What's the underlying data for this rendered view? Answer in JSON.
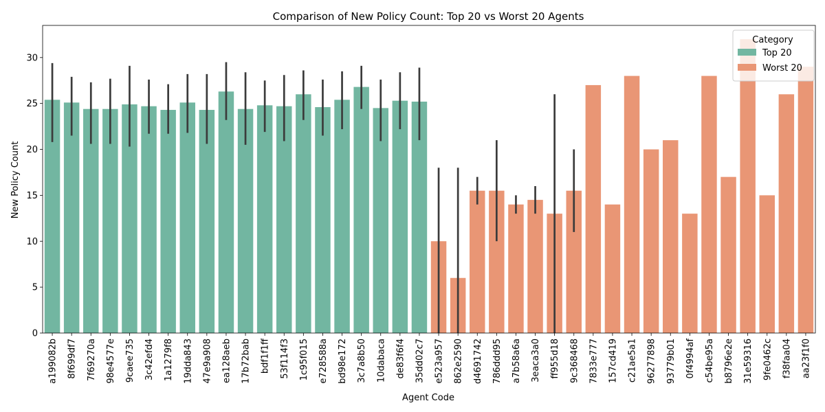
{
  "chart_data": {
    "type": "bar",
    "title": "Comparison of New Policy Count: Top 20 vs Worst 20 Agents",
    "xlabel": "Agent Code",
    "ylabel": "New Policy Count",
    "ylim": [
      0,
      33.5
    ],
    "yticks": [
      0,
      5,
      10,
      15,
      20,
      25,
      30
    ],
    "grid": false,
    "legend": {
      "title": "Category",
      "placement": "top-right",
      "entries": [
        {
          "name": "Top 20",
          "color": "#72b6a1"
        },
        {
          "name": "Worst 20",
          "color": "#e99675"
        }
      ]
    },
    "error_bar_color": "#3b3b3b",
    "categories": [
      "a199082b",
      "8f699df7",
      "7f69270a",
      "98e4577e",
      "9caee735",
      "3c42efd4",
      "1a1279f8",
      "19dda843",
      "47e9a908",
      "ea128aeb",
      "17b72bab",
      "bdf1f1ff",
      "53f114f3",
      "1c95f015",
      "e728588a",
      "bd98e172",
      "3c7a8b50",
      "10dabaca",
      "de83f6f4",
      "35dd02c7",
      "e523a957",
      "862e2590",
      "d4691742",
      "786ddd95",
      "a7b58a6a",
      "3eaca3a0",
      "ff955d18",
      "9c368468",
      "7833e777",
      "157cd419",
      "c21ae5a1",
      "96277898",
      "93779b01",
      "0f4994af",
      "c54be95a",
      "b8796e2e",
      "31e59316",
      "9fe0462c",
      "f38faa04",
      "aa23f1f0"
    ],
    "bar_category": [
      "Top 20",
      "Top 20",
      "Top 20",
      "Top 20",
      "Top 20",
      "Top 20",
      "Top 20",
      "Top 20",
      "Top 20",
      "Top 20",
      "Top 20",
      "Top 20",
      "Top 20",
      "Top 20",
      "Top 20",
      "Top 20",
      "Top 20",
      "Top 20",
      "Top 20",
      "Top 20",
      "Worst 20",
      "Worst 20",
      "Worst 20",
      "Worst 20",
      "Worst 20",
      "Worst 20",
      "Worst 20",
      "Worst 20",
      "Worst 20",
      "Worst 20",
      "Worst 20",
      "Worst 20",
      "Worst 20",
      "Worst 20",
      "Worst 20",
      "Worst 20",
      "Worst 20",
      "Worst 20",
      "Worst 20",
      "Worst 20"
    ],
    "values": [
      25.4,
      25.1,
      24.4,
      24.4,
      24.9,
      24.7,
      24.3,
      25.1,
      24.3,
      26.3,
      24.4,
      24.8,
      24.7,
      26.0,
      24.6,
      25.4,
      26.8,
      24.5,
      25.3,
      25.2,
      10.0,
      6.0,
      15.5,
      15.5,
      14.0,
      14.5,
      13.0,
      15.5,
      27.0,
      14.0,
      28.0,
      20.0,
      21.0,
      13.0,
      28.0,
      17.0,
      32.0,
      15.0,
      26.0,
      29.0
    ],
    "error_low": [
      20.8,
      21.5,
      20.6,
      20.6,
      20.3,
      21.7,
      21.7,
      21.8,
      20.6,
      23.2,
      20.5,
      21.9,
      20.9,
      23.2,
      21.5,
      22.2,
      24.4,
      20.9,
      22.2,
      21.0,
      0,
      0,
      14.0,
      10.0,
      13.0,
      13.0,
      0,
      11.0,
      null,
      null,
      null,
      null,
      null,
      null,
      null,
      null,
      null,
      null,
      null,
      null
    ],
    "error_high": [
      29.4,
      27.9,
      27.3,
      27.7,
      29.1,
      27.6,
      27.1,
      28.2,
      28.2,
      29.5,
      28.4,
      27.5,
      28.1,
      28.6,
      27.6,
      28.5,
      29.1,
      27.6,
      28.4,
      28.9,
      18.0,
      18.0,
      17.0,
      21.0,
      15.0,
      16.0,
      26.0,
      20.0,
      null,
      null,
      null,
      null,
      null,
      null,
      null,
      null,
      null,
      null,
      null,
      null
    ]
  }
}
